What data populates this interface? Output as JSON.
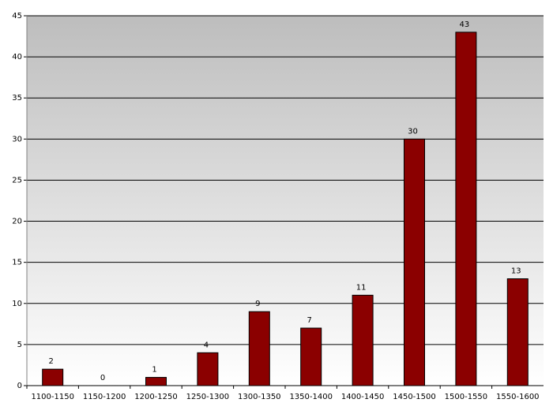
{
  "chart_data": {
    "type": "bar",
    "categories": [
      "1100-1150",
      "1150-1200",
      "1200-1250",
      "1250-1300",
      "1300-1350",
      "1350-1400",
      "1400-1450",
      "1450-1500",
      "1500-1550",
      "1550-1600"
    ],
    "values": [
      2,
      0,
      1,
      4,
      9,
      7,
      11,
      30,
      43,
      13
    ],
    "color": "#8b0000",
    "ylim": [
      0,
      45
    ],
    "yticks": [
      0,
      5,
      10,
      15,
      20,
      25,
      30,
      35,
      40,
      45
    ],
    "grid": true
  }
}
